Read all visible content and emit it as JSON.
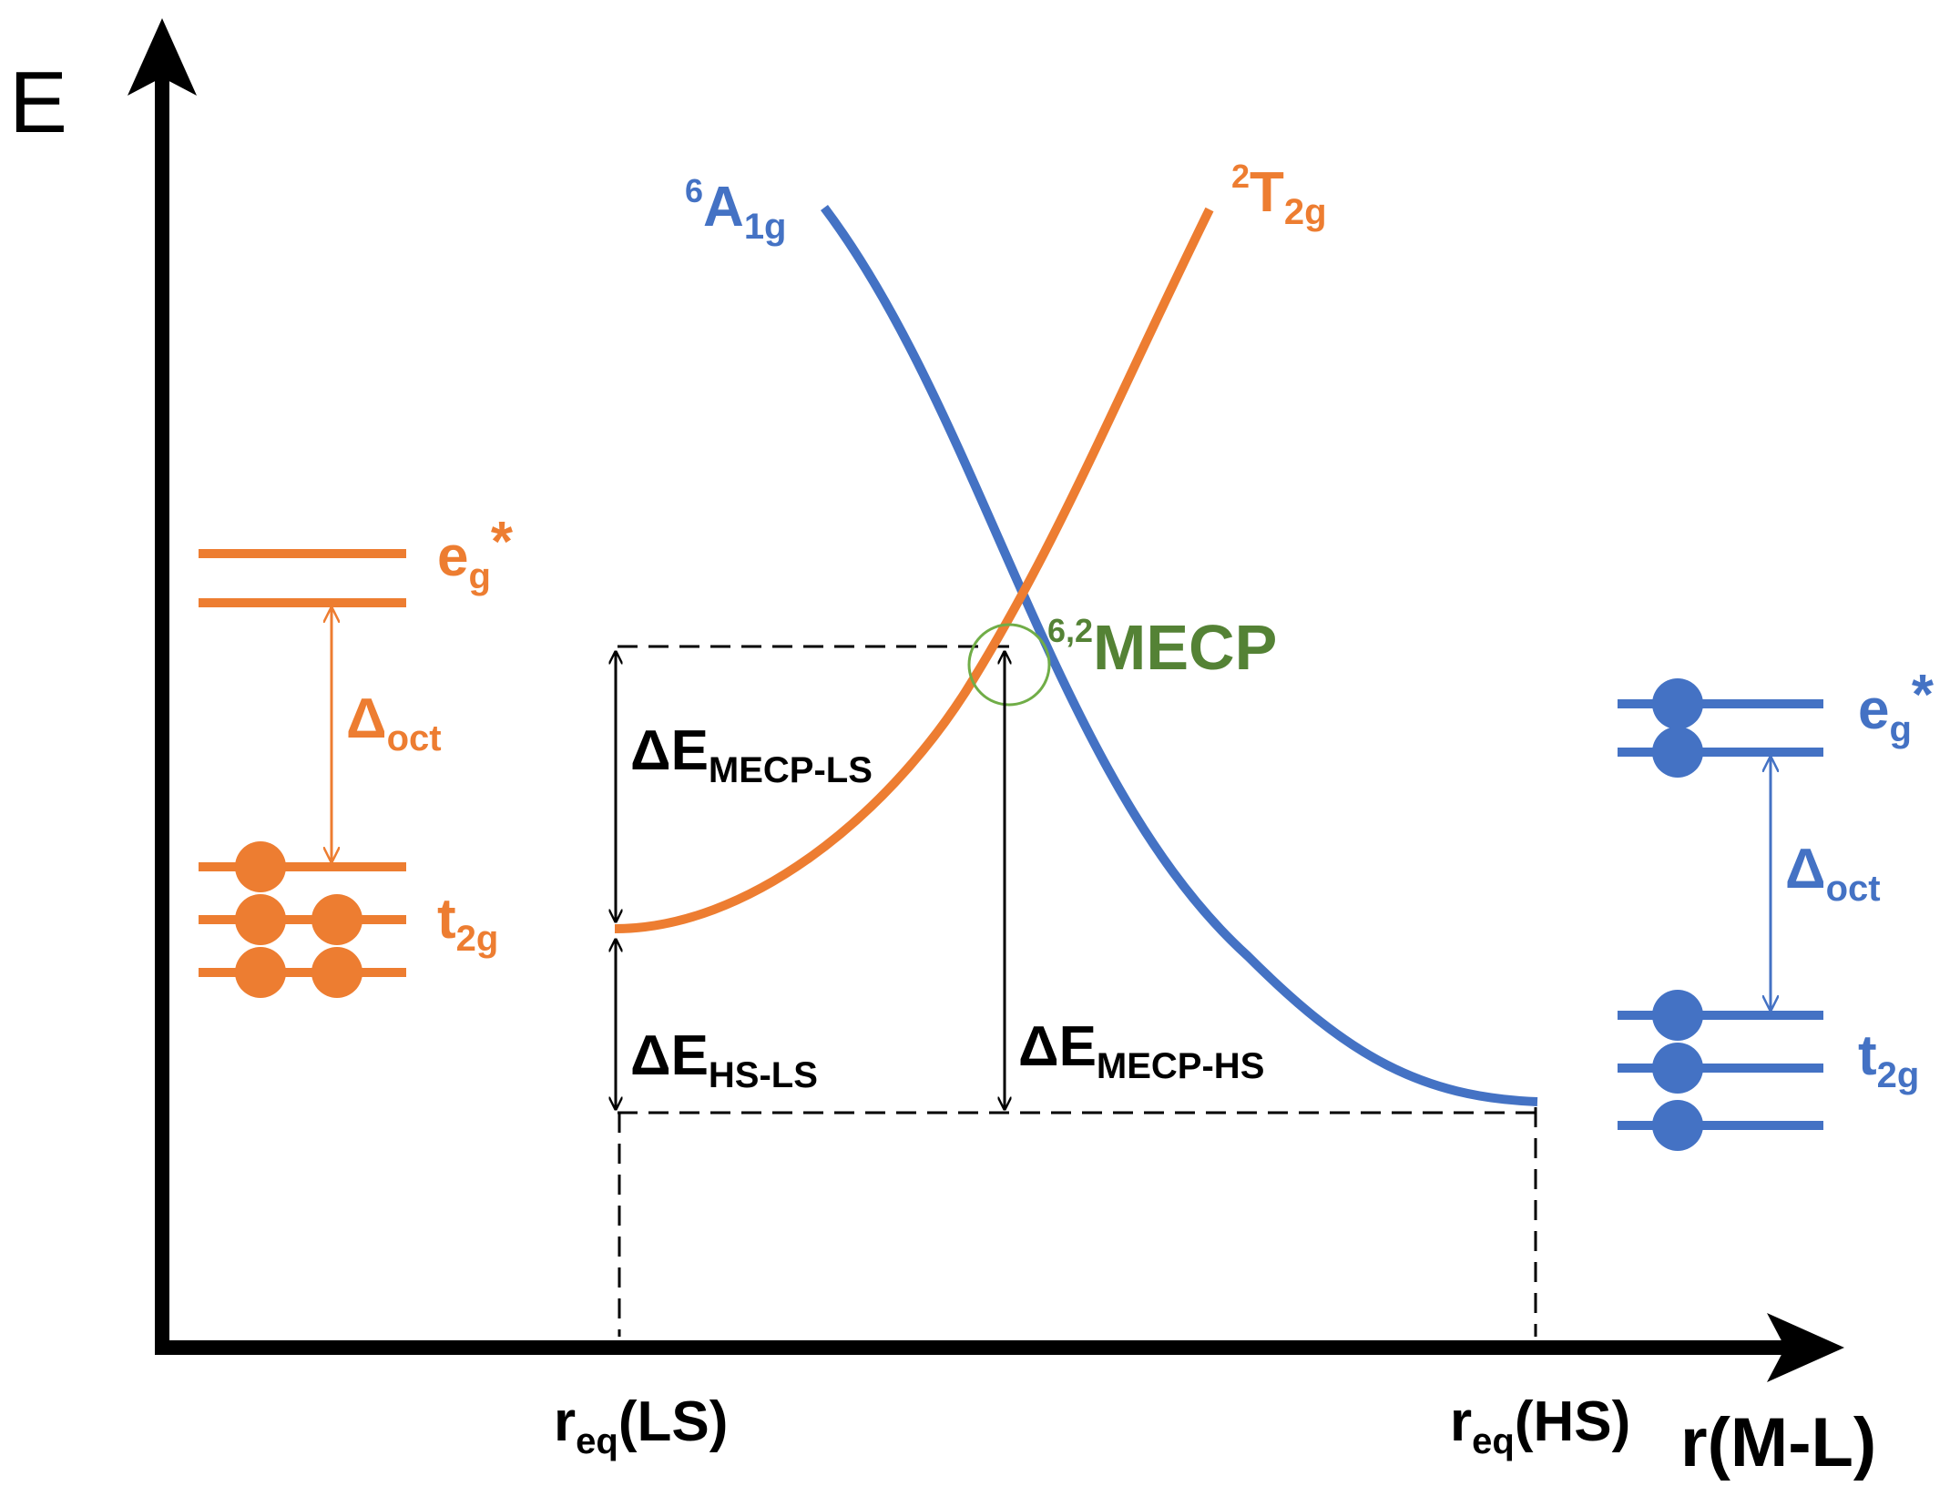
{
  "colors": {
    "ls": "#ED7D31",
    "hs": "#4472C4",
    "mecp": "#548235",
    "axis": "#000000"
  },
  "axes": {
    "y_label": "E",
    "x_label": "r(M-L)",
    "r_eq_ls": {
      "main": "r",
      "sub": "eq",
      "tail": "(LS)"
    },
    "r_eq_hs": {
      "main": "r",
      "sub": "eq",
      "tail": "(HS)"
    }
  },
  "curves": {
    "hs_state": {
      "sup": "6",
      "main": "A",
      "sub": "1g"
    },
    "ls_state": {
      "sup": "2",
      "main": "T",
      "sub": "2g"
    }
  },
  "mecp": {
    "sup": "6,2",
    "main": "MECP"
  },
  "energy_gaps": {
    "mecp_ls": {
      "main": "ΔE",
      "sub": "MECP-LS"
    },
    "hs_ls": {
      "main": "ΔE",
      "sub": "HS-LS"
    },
    "mecp_hs": {
      "main": "ΔE",
      "sub": "MECP-HS"
    }
  },
  "ls_orbitals": {
    "eg": {
      "main": "e",
      "sub": "g",
      "tail": "*"
    },
    "t2g": {
      "main": "t",
      "sub": "2g"
    },
    "delta": {
      "main": "Δ",
      "sub": "oct"
    },
    "eg_electrons": [
      0,
      0
    ],
    "t2g_electrons": [
      1,
      2,
      2
    ]
  },
  "hs_orbitals": {
    "eg": {
      "main": "e",
      "sub": "g",
      "tail": "*"
    },
    "t2g": {
      "main": "t",
      "sub": "2g"
    },
    "delta": {
      "main": "Δ",
      "sub": "oct"
    },
    "eg_electrons": [
      1,
      1
    ],
    "t2g_electrons": [
      1,
      1,
      1
    ]
  }
}
